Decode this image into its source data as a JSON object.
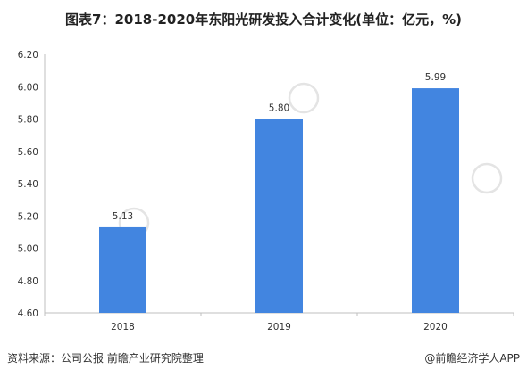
{
  "title": "图表7：2018-2020年东阳光研发投入合计变化(单位：亿元，%)",
  "footer": {
    "source": "资料来源：公司公报 前瞻产业研究院整理",
    "credit": "@前瞻经济学人APP"
  },
  "colors": {
    "bar": "#4285e0",
    "axis": "#bfbfbf",
    "text": "#333333"
  },
  "chart_data": {
    "type": "bar",
    "categories": [
      "2018",
      "2019",
      "2020"
    ],
    "values": [
      5.13,
      5.8,
      5.99
    ],
    "value_labels": [
      "5.13",
      "5.80",
      "5.99"
    ],
    "yticks": [
      "4.60",
      "4.80",
      "5.00",
      "5.20",
      "5.40",
      "5.60",
      "5.80",
      "6.00",
      "6.20"
    ],
    "ylim": [
      4.6,
      6.2
    ],
    "grid": false,
    "legend": "none",
    "xlabel": "",
    "ylabel": ""
  }
}
